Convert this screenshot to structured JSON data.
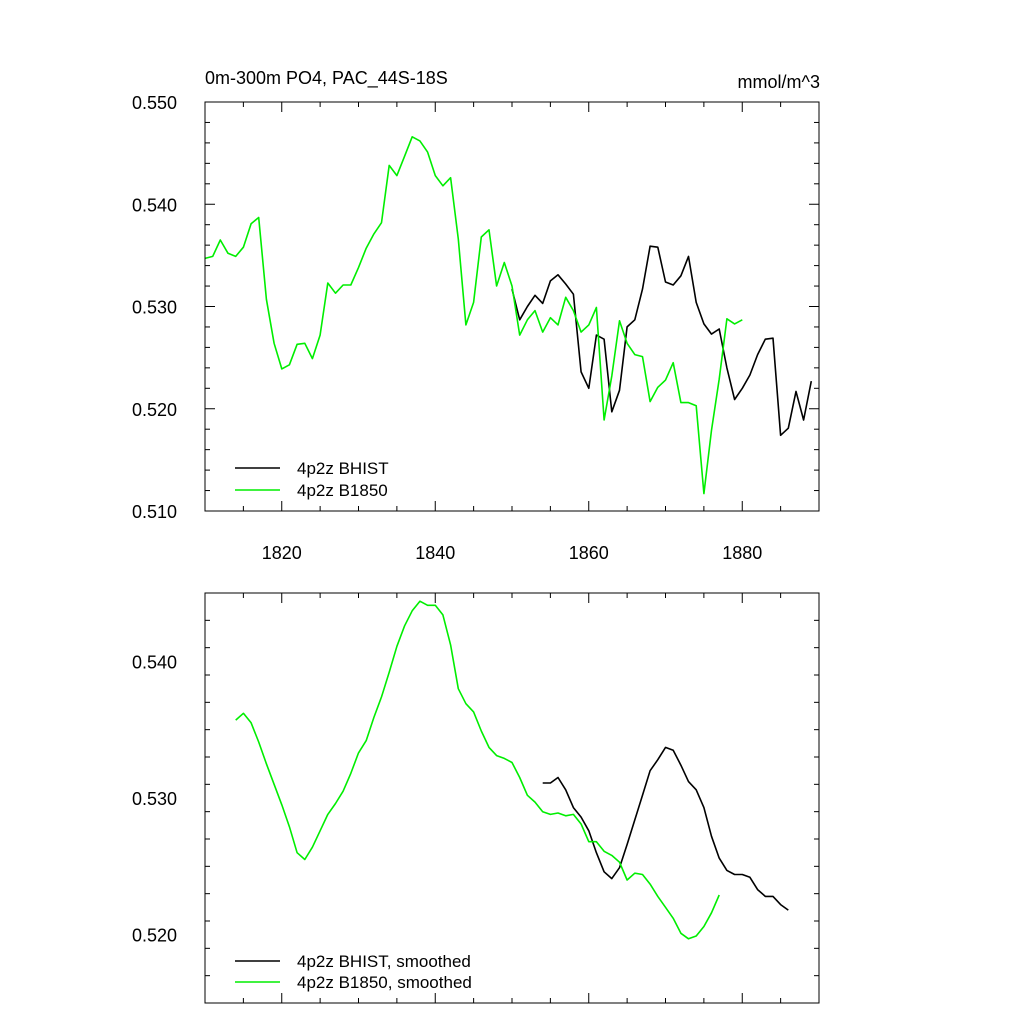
{
  "header": {
    "title": "0m-300m PO4, PAC_44S-18S",
    "units": "mmol/m^3"
  },
  "colors": {
    "hist": "#000000",
    "b1850": "#00ee00"
  },
  "chart_data": [
    {
      "type": "line",
      "title": "0m-300m PO4, PAC_44S-18S",
      "units_label": "mmol/m^3",
      "xlim": [
        1810,
        1890
      ],
      "ylim": [
        0.51,
        0.55
      ],
      "x_ticks": [
        1820,
        1840,
        1860,
        1880
      ],
      "x_tick_labels": [
        "1820",
        "1840",
        "1860",
        "1880"
      ],
      "y_ticks": [
        0.51,
        0.52,
        0.53,
        0.54,
        0.55
      ],
      "y_tick_labels": [
        "0.510",
        "0.520",
        "0.530",
        "0.540",
        "0.550"
      ],
      "legend_position": "bottom-left",
      "series": [
        {
          "name": "4p2z BHIST",
          "color": "#000000",
          "points": [
            [
              1850,
              0.5317
            ],
            [
              1851,
              0.5287
            ],
            [
              1852,
              0.53
            ],
            [
              1853,
              0.5311
            ],
            [
              1854,
              0.5303
            ],
            [
              1855,
              0.5325
            ],
            [
              1856,
              0.5331
            ],
            [
              1857,
              0.5322
            ],
            [
              1858,
              0.5312
            ],
            [
              1859,
              0.5236
            ],
            [
              1860,
              0.522
            ],
            [
              1861,
              0.5272
            ],
            [
              1862,
              0.5268
            ],
            [
              1863,
              0.5197
            ],
            [
              1864,
              0.5218
            ],
            [
              1865,
              0.528
            ],
            [
              1866,
              0.5287
            ],
            [
              1867,
              0.5317
            ],
            [
              1868,
              0.5359
            ],
            [
              1869,
              0.5358
            ],
            [
              1870,
              0.5324
            ],
            [
              1871,
              0.5321
            ],
            [
              1872,
              0.533
            ],
            [
              1873,
              0.5349
            ],
            [
              1874,
              0.5304
            ],
            [
              1875,
              0.5283
            ],
            [
              1876,
              0.5273
            ],
            [
              1877,
              0.5278
            ],
            [
              1878,
              0.524
            ],
            [
              1879,
              0.5209
            ],
            [
              1880,
              0.522
            ],
            [
              1881,
              0.5233
            ],
            [
              1882,
              0.5253
            ],
            [
              1883,
              0.5268
            ],
            [
              1884,
              0.5269
            ],
            [
              1885,
              0.5174
            ],
            [
              1886,
              0.5181
            ],
            [
              1887,
              0.5217
            ],
            [
              1888,
              0.5189
            ],
            [
              1889,
              0.5227
            ]
          ]
        },
        {
          "name": "4p2z B1850",
          "color": "#00ee00",
          "points": [
            [
              1810,
              0.5347
            ],
            [
              1811,
              0.5349
            ],
            [
              1812,
              0.5365
            ],
            [
              1813,
              0.5352
            ],
            [
              1814,
              0.5349
            ],
            [
              1815,
              0.5358
            ],
            [
              1816,
              0.5381
            ],
            [
              1817,
              0.5387
            ],
            [
              1818,
              0.5307
            ],
            [
              1819,
              0.5264
            ],
            [
              1820,
              0.5239
            ],
            [
              1821,
              0.5243
            ],
            [
              1822,
              0.5263
            ],
            [
              1823,
              0.5264
            ],
            [
              1824,
              0.5249
            ],
            [
              1825,
              0.5272
            ],
            [
              1826,
              0.5323
            ],
            [
              1827,
              0.5313
            ],
            [
              1828,
              0.5321
            ],
            [
              1829,
              0.5321
            ],
            [
              1830,
              0.5338
            ],
            [
              1831,
              0.5357
            ],
            [
              1832,
              0.5371
            ],
            [
              1833,
              0.5382
            ],
            [
              1834,
              0.5438
            ],
            [
              1835,
              0.5428
            ],
            [
              1836,
              0.5447
            ],
            [
              1837,
              0.5466
            ],
            [
              1838,
              0.5462
            ],
            [
              1839,
              0.5451
            ],
            [
              1840,
              0.5428
            ],
            [
              1841,
              0.5418
            ],
            [
              1842,
              0.5426
            ],
            [
              1843,
              0.5366
            ],
            [
              1844,
              0.5282
            ],
            [
              1845,
              0.5304
            ],
            [
              1846,
              0.5368
            ],
            [
              1847,
              0.5375
            ],
            [
              1848,
              0.532
            ],
            [
              1849,
              0.5343
            ],
            [
              1850,
              0.532
            ],
            [
              1851,
              0.5272
            ],
            [
              1852,
              0.5287
            ],
            [
              1853,
              0.5296
            ],
            [
              1854,
              0.5275
            ],
            [
              1855,
              0.5289
            ],
            [
              1856,
              0.5282
            ],
            [
              1857,
              0.5309
            ],
            [
              1858,
              0.5296
            ],
            [
              1859,
              0.5275
            ],
            [
              1860,
              0.5282
            ],
            [
              1861,
              0.5299
            ],
            [
              1862,
              0.5189
            ],
            [
              1863,
              0.5232
            ],
            [
              1864,
              0.5286
            ],
            [
              1865,
              0.5264
            ],
            [
              1866,
              0.5253
            ],
            [
              1867,
              0.5251
            ],
            [
              1868,
              0.5207
            ],
            [
              1869,
              0.5221
            ],
            [
              1870,
              0.5228
            ],
            [
              1871,
              0.5245
            ],
            [
              1872,
              0.5206
            ],
            [
              1873,
              0.5206
            ],
            [
              1874,
              0.5203
            ],
            [
              1875,
              0.5117
            ],
            [
              1876,
              0.5179
            ],
            [
              1877,
              0.5229
            ],
            [
              1878,
              0.5288
            ],
            [
              1879,
              0.5283
            ],
            [
              1880,
              0.5287
            ]
          ]
        }
      ]
    },
    {
      "type": "line",
      "xlim": [
        1810,
        1890
      ],
      "ylim": [
        0.515,
        0.545
      ],
      "x_ticks": [
        1820,
        1840,
        1860,
        1880
      ],
      "y_ticks": [
        0.52,
        0.53,
        0.54
      ],
      "y_tick_labels": [
        "0.520",
        "0.530",
        "0.540"
      ],
      "legend_position": "bottom-left",
      "series": [
        {
          "name": "4p2z BHIST, smoothed",
          "color": "#000000",
          "points": [
            [
              1854,
              0.5311
            ],
            [
              1855,
              0.5311
            ],
            [
              1856,
              0.5315
            ],
            [
              1857,
              0.5306
            ],
            [
              1858,
              0.5293
            ],
            [
              1859,
              0.5286
            ],
            [
              1860,
              0.5276
            ],
            [
              1861,
              0.526
            ],
            [
              1862,
              0.5246
            ],
            [
              1863,
              0.5241
            ],
            [
              1864,
              0.5249
            ],
            [
              1865,
              0.5266
            ],
            [
              1866,
              0.5284
            ],
            [
              1867,
              0.5302
            ],
            [
              1868,
              0.532
            ],
            [
              1869,
              0.5328
            ],
            [
              1870,
              0.5337
            ],
            [
              1871,
              0.5335
            ],
            [
              1872,
              0.5324
            ],
            [
              1873,
              0.5312
            ],
            [
              1874,
              0.5306
            ],
            [
              1875,
              0.5293
            ],
            [
              1876,
              0.5272
            ],
            [
              1877,
              0.5256
            ],
            [
              1878,
              0.5247
            ],
            [
              1879,
              0.5244
            ],
            [
              1880,
              0.5244
            ],
            [
              1881,
              0.5242
            ],
            [
              1882,
              0.5233
            ],
            [
              1883,
              0.5228
            ],
            [
              1884,
              0.5228
            ],
            [
              1885,
              0.5222
            ],
            [
              1886,
              0.5218
            ]
          ]
        },
        {
          "name": "4p2z B1850, smoothed",
          "color": "#00ee00",
          "points": [
            [
              1814,
              0.5357
            ],
            [
              1815,
              0.5362
            ],
            [
              1816,
              0.5355
            ],
            [
              1817,
              0.5341
            ],
            [
              1818,
              0.5325
            ],
            [
              1819,
              0.531
            ],
            [
              1820,
              0.5295
            ],
            [
              1821,
              0.5279
            ],
            [
              1822,
              0.526
            ],
            [
              1823,
              0.5255
            ],
            [
              1824,
              0.5264
            ],
            [
              1825,
              0.5276
            ],
            [
              1826,
              0.5288
            ],
            [
              1827,
              0.5296
            ],
            [
              1828,
              0.5305
            ],
            [
              1829,
              0.5318
            ],
            [
              1830,
              0.5333
            ],
            [
              1831,
              0.5342
            ],
            [
              1832,
              0.5359
            ],
            [
              1833,
              0.5374
            ],
            [
              1834,
              0.5392
            ],
            [
              1835,
              0.5411
            ],
            [
              1836,
              0.5426
            ],
            [
              1837,
              0.5437
            ],
            [
              1838,
              0.5444
            ],
            [
              1839,
              0.5441
            ],
            [
              1840,
              0.5441
            ],
            [
              1841,
              0.5434
            ],
            [
              1842,
              0.5412
            ],
            [
              1843,
              0.538
            ],
            [
              1844,
              0.5369
            ],
            [
              1845,
              0.5363
            ],
            [
              1846,
              0.5349
            ],
            [
              1847,
              0.5337
            ],
            [
              1848,
              0.5331
            ],
            [
              1849,
              0.5329
            ],
            [
              1850,
              0.5326
            ],
            [
              1851,
              0.5315
            ],
            [
              1852,
              0.5302
            ],
            [
              1853,
              0.5297
            ],
            [
              1854,
              0.529
            ],
            [
              1855,
              0.5288
            ],
            [
              1856,
              0.5289
            ],
            [
              1857,
              0.5287
            ],
            [
              1858,
              0.5288
            ],
            [
              1859,
              0.5281
            ],
            [
              1860,
              0.5268
            ],
            [
              1861,
              0.5268
            ],
            [
              1862,
              0.5261
            ],
            [
              1863,
              0.5258
            ],
            [
              1864,
              0.5253
            ],
            [
              1865,
              0.524
            ],
            [
              1866,
              0.5245
            ],
            [
              1867,
              0.5244
            ],
            [
              1868,
              0.5237
            ],
            [
              1869,
              0.5228
            ],
            [
              1870,
              0.522
            ],
            [
              1871,
              0.5212
            ],
            [
              1872,
              0.5201
            ],
            [
              1873,
              0.5197
            ],
            [
              1874,
              0.5199
            ],
            [
              1875,
              0.5206
            ],
            [
              1876,
              0.5216
            ],
            [
              1877,
              0.5229
            ]
          ]
        }
      ]
    }
  ]
}
